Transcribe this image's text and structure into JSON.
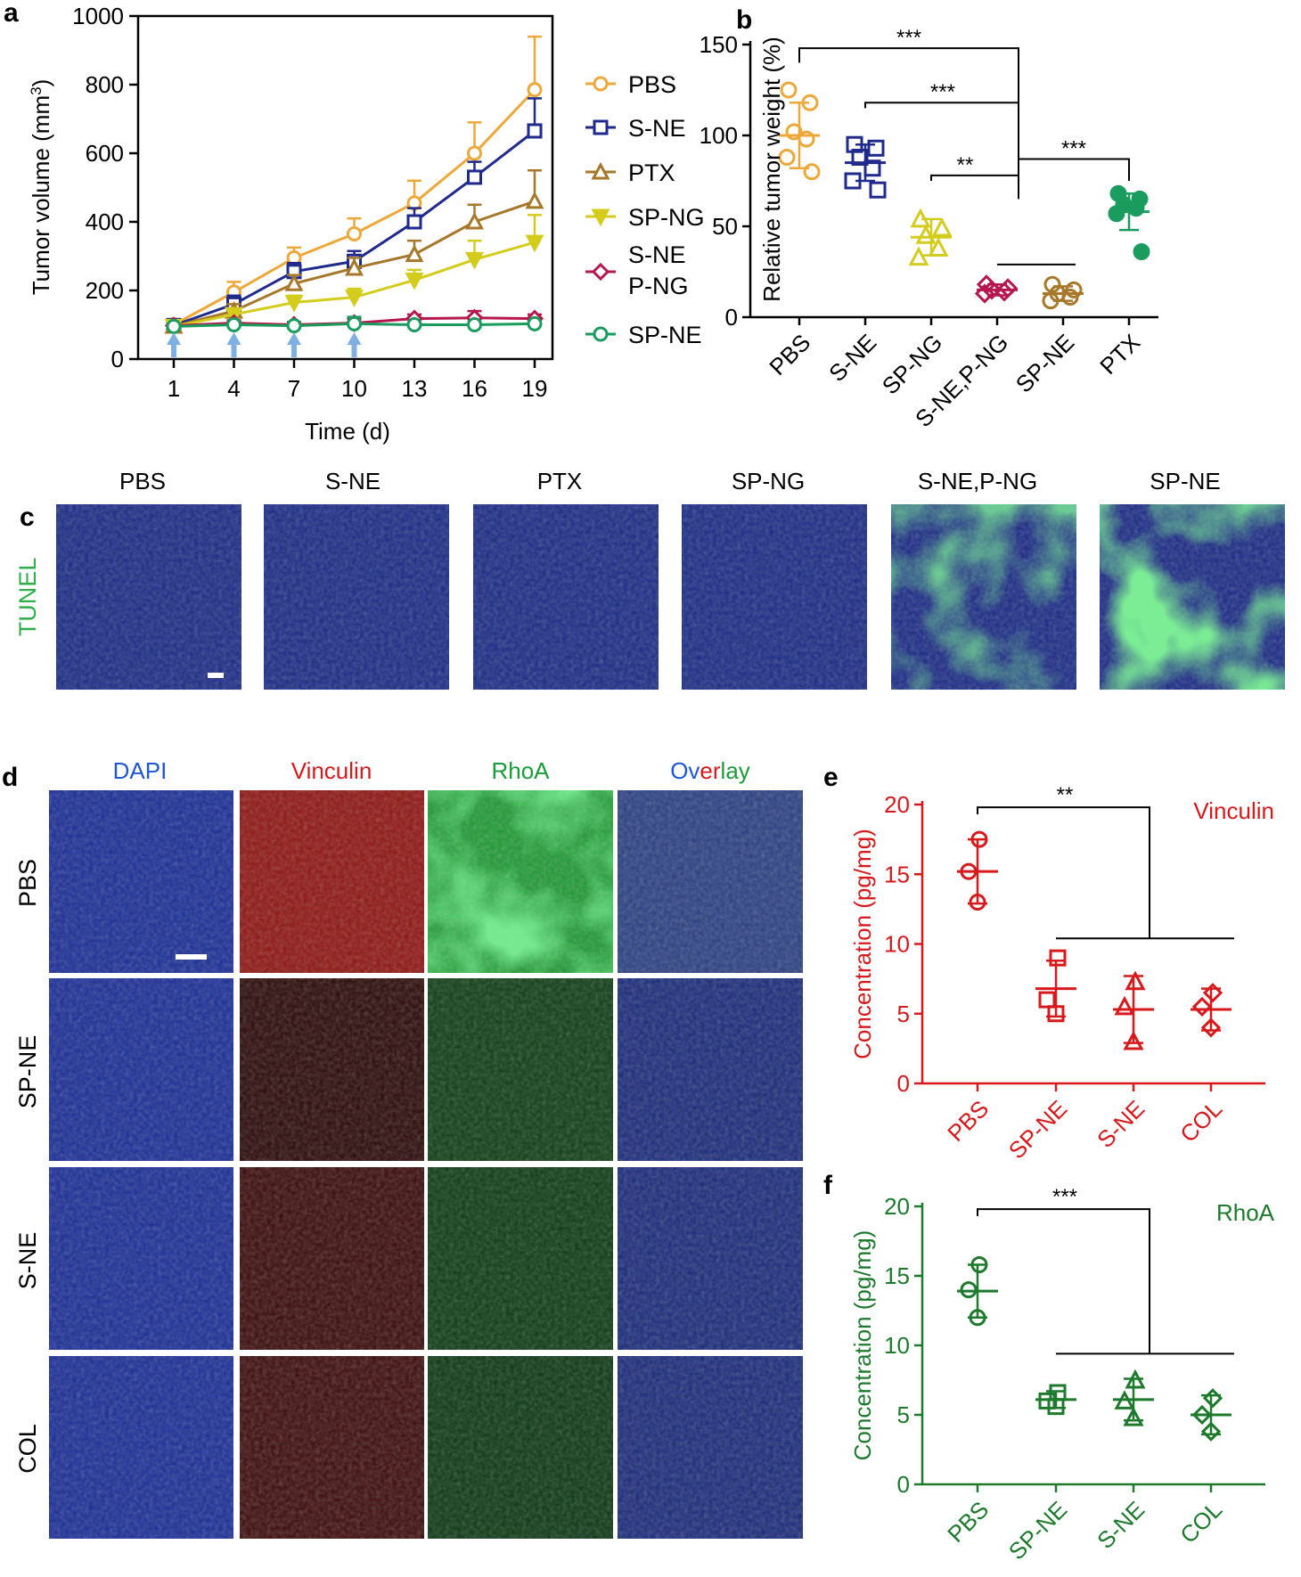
{
  "panel_letters": {
    "a": "a",
    "b": "b",
    "c": "c",
    "d": "d",
    "e": "e",
    "f": "f"
  },
  "colors": {
    "PBS": "#eea83a",
    "S-NE": "#1f2a8c",
    "PTX": "#a7772a",
    "SP-NG": "#d4cc1c",
    "S-NE P-NG": "#b5174e",
    "SP-NE": "#1a9c5f",
    "PTX_b": "#1a9c5f",
    "e_color": "#d7191c",
    "f_color": "#1d7a2c",
    "arrow": "#7fb0e3"
  },
  "panel_c": {
    "labels": [
      "PBS",
      "S-NE",
      "PTX",
      "SP-NG",
      "S-NE,P-NG",
      "SP-NE"
    ],
    "row_label": "TUNEL",
    "green_level": [
      0.0,
      0.0,
      0.03,
      0.2,
      0.55,
      0.75
    ]
  },
  "panel_d": {
    "col_labels": [
      "DAPI",
      "Vinculin",
      "RhoA",
      "Overlay"
    ],
    "overlay_parts": [
      "Ov",
      "er",
      "lay"
    ],
    "row_labels": [
      "PBS",
      "SP-NE",
      "S-NE",
      "COL"
    ]
  },
  "chart_data": [
    {
      "id": "a",
      "type": "line",
      "xlabel": "Time (d)",
      "ylabel": "Tumor volume (mm",
      "ylabel_sup": "3",
      "ylabel_close": ")",
      "x": [
        1,
        4,
        7,
        10,
        13,
        16,
        19
      ],
      "xticks": [
        "1",
        "4",
        "7",
        "10",
        "13",
        "16",
        "19"
      ],
      "ylim": [
        0,
        1000
      ],
      "yticks": [
        "0",
        "200",
        "400",
        "600",
        "800",
        "1000"
      ],
      "dosing_days": [
        1,
        4,
        7,
        10
      ],
      "series": [
        {
          "name": "PBS",
          "marker": "circle",
          "values": [
            100,
            195,
            295,
            365,
            455,
            600,
            785
          ],
          "err": [
            10,
            30,
            30,
            45,
            65,
            90,
            155
          ]
        },
        {
          "name": "S-NE",
          "marker": "square",
          "values": [
            98,
            160,
            255,
            285,
            400,
            530,
            665
          ],
          "err": [
            10,
            25,
            25,
            30,
            40,
            45,
            95
          ]
        },
        {
          "name": "PTX",
          "marker": "triangle",
          "values": [
            96,
            140,
            220,
            265,
            305,
            400,
            460
          ],
          "err": [
            8,
            20,
            25,
            30,
            40,
            50,
            90
          ]
        },
        {
          "name": "SP-NG",
          "marker": "triangle-down",
          "values": [
            95,
            130,
            165,
            180,
            230,
            290,
            340
          ],
          "err": [
            8,
            15,
            20,
            25,
            30,
            55,
            80
          ]
        },
        {
          "name": "S-NE P-NG",
          "label_lines": [
            "S-NE",
            "P-NG"
          ],
          "marker": "diamond",
          "values": [
            97,
            105,
            100,
            105,
            118,
            120,
            118
          ],
          "err": [
            5,
            8,
            8,
            12,
            12,
            20,
            12
          ]
        },
        {
          "name": "SP-NE",
          "marker": "hexagon",
          "values": [
            95,
            100,
            97,
            103,
            100,
            100,
            103
          ],
          "err": [
            5,
            6,
            6,
            20,
            6,
            8,
            6
          ]
        }
      ]
    },
    {
      "id": "b",
      "type": "scatter",
      "ylabel": "Relative tumor weight (%)",
      "ylim": [
        0,
        150
      ],
      "yticks": [
        "0",
        "50",
        "100",
        "150"
      ],
      "categories": [
        "PBS",
        "S-NE",
        "SP-NG",
        "S-NE,P-NG",
        "SP-NE",
        "PTX"
      ],
      "groups": [
        {
          "name": "PBS",
          "marker": "circle",
          "mean": 100,
          "sd": 18,
          "points": [
            125,
            118,
            102,
            98,
            88,
            80
          ]
        },
        {
          "name": "S-NE",
          "marker": "square",
          "mean": 85,
          "sd": 10,
          "points": [
            95,
            93,
            88,
            82,
            75,
            70
          ]
        },
        {
          "name": "SP-NG",
          "marker": "triangle",
          "mean": 44,
          "sd": 10,
          "points": [
            54,
            49,
            45,
            38,
            33
          ]
        },
        {
          "name": "S-NE,P-NG",
          "marker": "diamond",
          "mean": 15,
          "sd": 3,
          "points": [
            18,
            16,
            15,
            14,
            13
          ]
        },
        {
          "name": "SP-NE",
          "marker": "hexagon",
          "mean": 13,
          "sd": 4,
          "points": [
            18,
            15,
            13,
            11,
            9
          ]
        },
        {
          "name": "PTX",
          "marker": "circle-filled",
          "mean": 58,
          "sd": 10,
          "points": [
            68,
            65,
            62,
            60,
            57,
            36
          ]
        }
      ],
      "significance": [
        "***",
        "***",
        "**",
        "***"
      ]
    },
    {
      "id": "e",
      "type": "scatter",
      "ylabel": "Concentration (pg/mg)",
      "series_label": "Vinculin",
      "ylim": [
        0,
        20
      ],
      "yticks": [
        "0",
        "5",
        "10",
        "15",
        "20"
      ],
      "categories": [
        "PBS",
        "SP-NE",
        "S-NE",
        "COL"
      ],
      "groups": [
        {
          "name": "PBS",
          "marker": "circle",
          "mean": 15.2,
          "sd": 2.3,
          "points": [
            17.5,
            15.2,
            13.0
          ]
        },
        {
          "name": "SP-NE",
          "marker": "square",
          "mean": 6.8,
          "sd": 2.0,
          "points": [
            9.0,
            6.0,
            5.0
          ]
        },
        {
          "name": "S-NE",
          "marker": "triangle",
          "mean": 5.3,
          "sd": 2.4,
          "points": [
            7.3,
            5.5,
            3.0
          ]
        },
        {
          "name": "COL",
          "marker": "diamond",
          "mean": 5.3,
          "sd": 1.5,
          "points": [
            6.5,
            5.5,
            4.0
          ]
        }
      ],
      "significance": "**"
    },
    {
      "id": "f",
      "type": "scatter",
      "ylabel": "Concentration (pg/mg)",
      "series_label": "RhoA",
      "ylim": [
        0,
        20
      ],
      "yticks": [
        "0",
        "5",
        "10",
        "15",
        "20"
      ],
      "categories": [
        "PBS",
        "SP-NE",
        "S-NE",
        "COL"
      ],
      "groups": [
        {
          "name": "PBS",
          "marker": "circle",
          "mean": 13.9,
          "sd": 1.9,
          "points": [
            15.8,
            14.0,
            12.0
          ]
        },
        {
          "name": "SP-NE",
          "marker": "square",
          "mean": 6.1,
          "sd": 0.6,
          "points": [
            6.6,
            6.0,
            5.6
          ]
        },
        {
          "name": "S-NE",
          "marker": "triangle",
          "mean": 6.1,
          "sd": 1.5,
          "points": [
            7.5,
            6.0,
            4.8
          ]
        },
        {
          "name": "COL",
          "marker": "diamond",
          "mean": 5.0,
          "sd": 1.4,
          "points": [
            6.2,
            5.0,
            3.8
          ]
        }
      ],
      "significance": "***"
    }
  ]
}
